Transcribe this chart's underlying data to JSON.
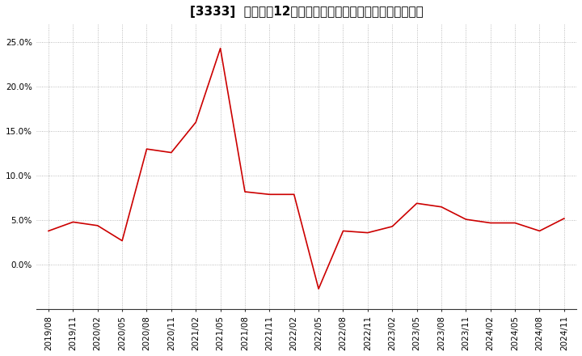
{
  "title": "[3333]  売上高の12か月移動合計の対前年同期増減率の推移",
  "x_labels": [
    "2019/08",
    "2019/11",
    "2020/02",
    "2020/05",
    "2020/08",
    "2020/11",
    "2021/02",
    "2021/05",
    "2021/08",
    "2021/11",
    "2022/02",
    "2022/05",
    "2022/08",
    "2022/11",
    "2023/02",
    "2023/05",
    "2023/08",
    "2023/11",
    "2024/02",
    "2024/05",
    "2024/08",
    "2024/11"
  ],
  "y_values": [
    0.038,
    0.048,
    0.044,
    0.027,
    0.13,
    0.126,
    0.16,
    0.243,
    0.082,
    0.079,
    0.079,
    -0.027,
    0.038,
    0.036,
    0.043,
    0.069,
    0.065,
    0.051,
    0.047,
    0.047,
    0.038,
    0.052
  ],
  "ylim": [
    -0.05,
    0.27
  ],
  "yticks": [
    0.0,
    0.05,
    0.1,
    0.15,
    0.2,
    0.25
  ],
  "ytick_labels": [
    "0.0%",
    "5.0%",
    "10.0%",
    "15.0%",
    "20.0%",
    "25.0%"
  ],
  "line_color": "#cc0000",
  "bg_color": "#ffffff",
  "plot_bg_color": "#ffffff",
  "grid_color": "#aaaaaa",
  "title_fontsize": 11,
  "tick_fontsize": 7.5
}
